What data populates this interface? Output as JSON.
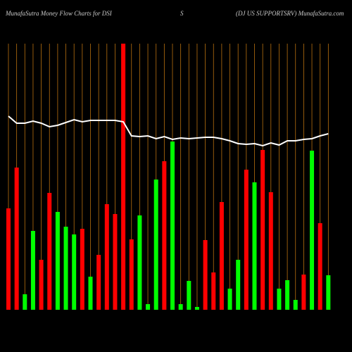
{
  "chart_data": {
    "type": "bar",
    "title": "MunafaSutra  Money Flow  Charts for DSI",
    "subtitle": "S",
    "source": "(DJ US SUPPORTSRV) MunafaSutra.com",
    "ylim": [
      0,
      400
    ],
    "grid": true,
    "grid_color": "#b8700f",
    "series": [
      {
        "type": "bar",
        "values": [
          144,
          202,
          22,
          112,
          71,
          166,
          139,
          118,
          107,
          115,
          47,
          78,
          150,
          136,
          378,
          100,
          134,
          8,
          185,
          211,
          239,
          8,
          41,
          4,
          99,
          53,
          153,
          30,
          71,
          199,
          181,
          227,
          167,
          30,
          42,
          14,
          50,
          226,
          123,
          49
        ],
        "colors": [
          "#ff0000",
          "#ff0000",
          "#00ff00",
          "#00ff00",
          "#ff0000",
          "#ff0000",
          "#00ff00",
          "#00ff00",
          "#00ff00",
          "#ff0000",
          "#00ff00",
          "#ff0000",
          "#ff0000",
          "#ff0000",
          "#ff0000",
          "#ff0000",
          "#00ff00",
          "#00ff00",
          "#00ff00",
          "#ff0000",
          "#00ff00",
          "#00ff00",
          "#00ff00",
          "#00ff00",
          "#ff0000",
          "#ff0000",
          "#ff0000",
          "#00ff00",
          "#00ff00",
          "#ff0000",
          "#00ff00",
          "#ff0000",
          "#ff0000",
          "#00ff00",
          "#00ff00",
          "#00ff00",
          "#ff0000",
          "#00ff00",
          "#ff0000",
          "#00ff00"
        ]
      },
      {
        "type": "line",
        "color": "#ffffff",
        "values": [
          275,
          265,
          265,
          268,
          265,
          260,
          262,
          266,
          270,
          267,
          269,
          269,
          269,
          269,
          267,
          247,
          246,
          247,
          243,
          246,
          242,
          244,
          243,
          244,
          245,
          245,
          243,
          240,
          236,
          235,
          236,
          233,
          237,
          234,
          240,
          240,
          242,
          243,
          247,
          250
        ]
      }
    ]
  }
}
